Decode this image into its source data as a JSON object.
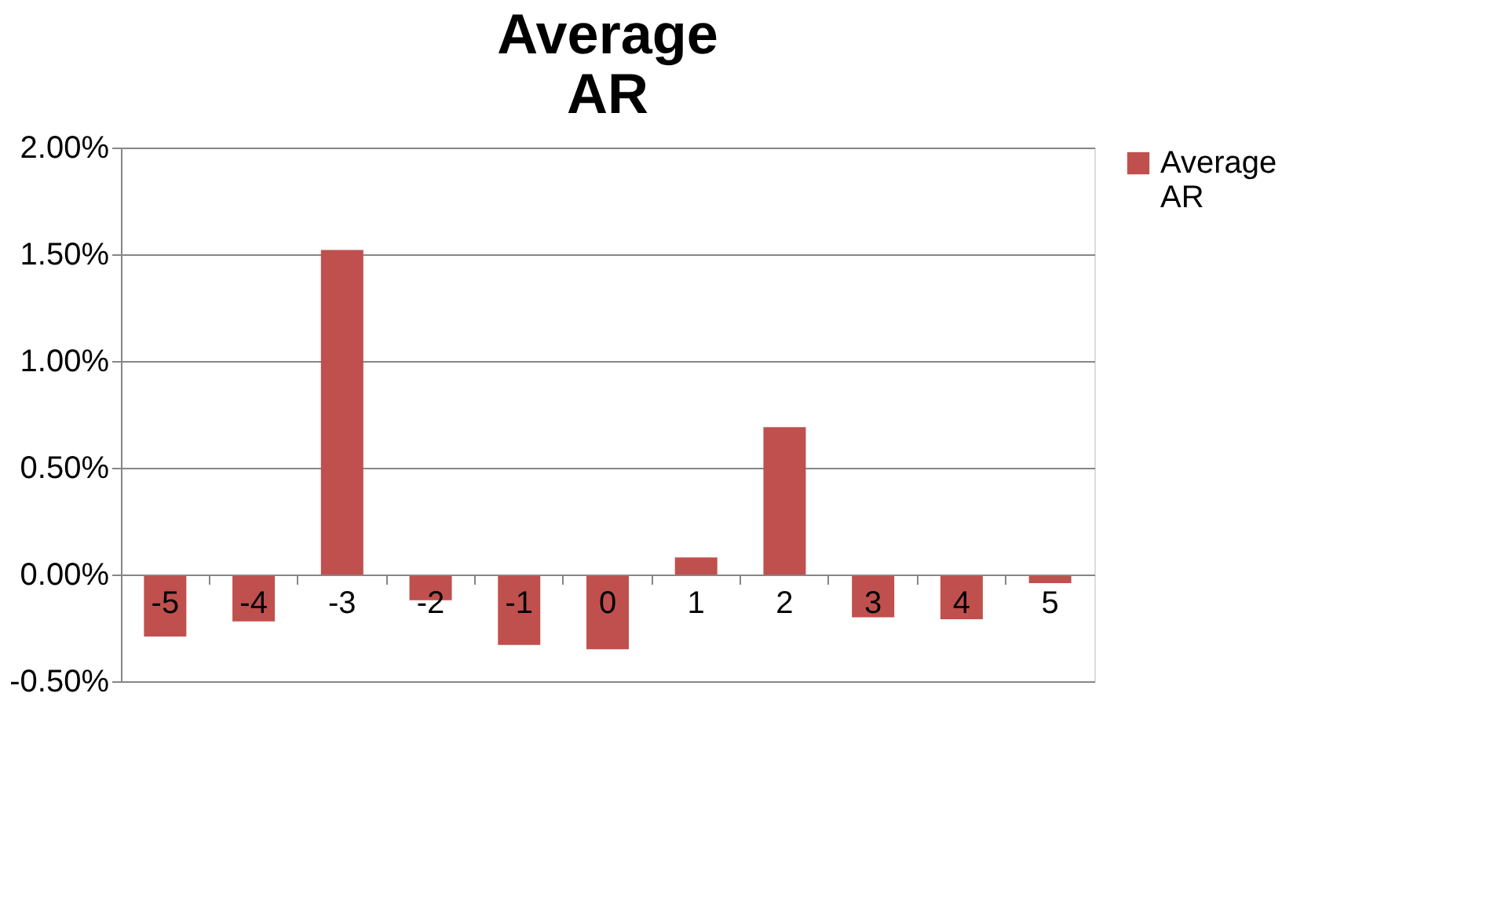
{
  "chart_data": {
    "type": "bar",
    "title": "Average AR",
    "categories": [
      "-5",
      "-4",
      "-3",
      "-2",
      "-1",
      "0",
      "1",
      "2",
      "3",
      "4",
      "5"
    ],
    "series": [
      {
        "name": "Average AR",
        "color": "#c0504d",
        "values": [
          -0.29,
          -0.22,
          1.52,
          -0.12,
          -0.33,
          -0.35,
          0.08,
          0.69,
          -0.2,
          -0.21,
          -0.04
        ]
      }
    ],
    "ylim": [
      -0.5,
      2.0
    ],
    "yticks": [
      {
        "value": -0.5,
        "label": "-0.50%"
      },
      {
        "value": 0,
        "label": "0.00%"
      },
      {
        "value": 0.5,
        "label": "0.50%"
      },
      {
        "value": 1.0,
        "label": "1.00%"
      },
      {
        "value": 1.5,
        "label": "1.50%"
      },
      {
        "value": 2.0,
        "label": "2.00%"
      }
    ],
    "grid": "y",
    "legend": "right"
  }
}
